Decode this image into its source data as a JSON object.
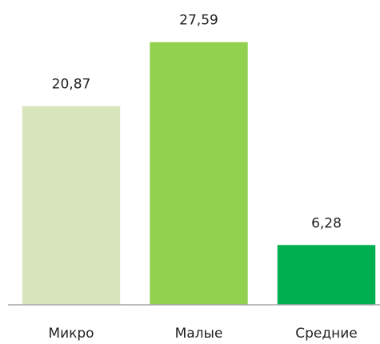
{
  "chart_data": {
    "type": "bar",
    "categories": [
      "Микро",
      "Малые",
      "Средние"
    ],
    "values": [
      20.87,
      27.59,
      6.28
    ],
    "value_labels": [
      "20,87",
      "27,59",
      "6,28"
    ],
    "colors": [
      "#d8e4bc",
      "#92d050",
      "#00b050"
    ],
    "ylim": [
      0,
      30
    ]
  }
}
